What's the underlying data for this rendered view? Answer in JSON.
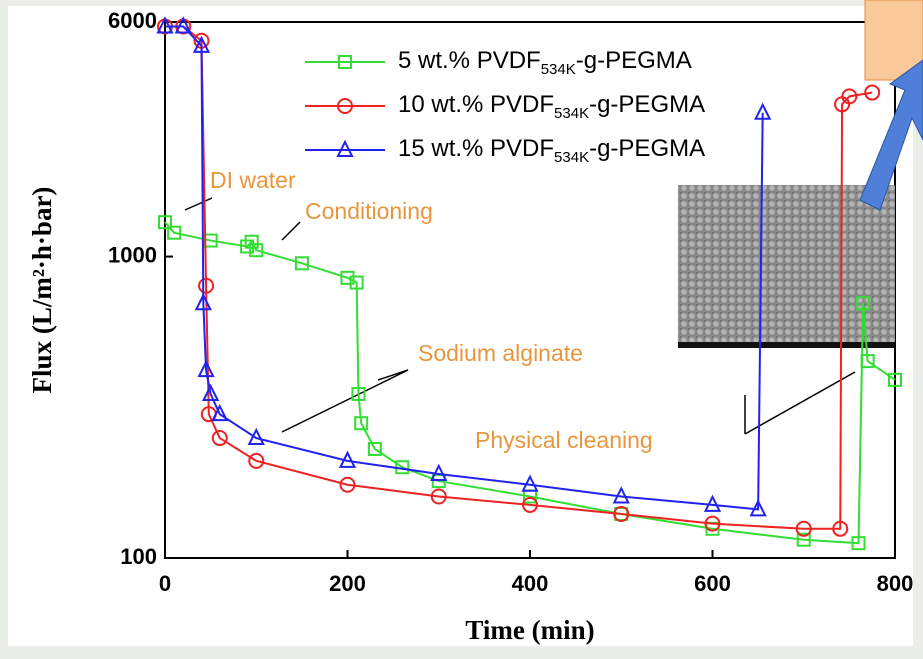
{
  "chart_data": {
    "type": "line",
    "x_label": "Time (min)",
    "y_label": "Flux (L/m²·h·bar)",
    "xlim": [
      0,
      800
    ],
    "xticks": [
      0,
      200,
      400,
      600,
      800
    ],
    "ylim": [
      100,
      6000
    ],
    "yticks": [
      100,
      1000,
      6000
    ],
    "y_log": true,
    "series": [
      {
        "name": "5 wt.%  PVDF534K-g-PEGMA",
        "color": "#33dd33",
        "marker": "square",
        "x": [
          0,
          10,
          50,
          90,
          95,
          100,
          150,
          200,
          210,
          212,
          215,
          230,
          260,
          300,
          400,
          500,
          600,
          700,
          760,
          765,
          770,
          800
        ],
        "values": [
          1300,
          1200,
          1130,
          1080,
          1120,
          1050,
          950,
          850,
          820,
          350,
          280,
          230,
          200,
          180,
          160,
          140,
          125,
          115,
          112,
          700,
          450,
          390
        ]
      },
      {
        "name": "10 wt.%  PVDF534K-g-PEGMA",
        "color": "#ee2222",
        "marker": "circle",
        "x": [
          0,
          20,
          40,
          45,
          48,
          60,
          100,
          200,
          300,
          400,
          500,
          600,
          700,
          740,
          742,
          750,
          775
        ],
        "values": [
          5800,
          5800,
          5200,
          800,
          300,
          250,
          210,
          175,
          160,
          150,
          140,
          130,
          125,
          125,
          3200,
          3400,
          3500
        ]
      },
      {
        "name": "15 wt.%  PVDF534K-g-PEGMA",
        "color": "#2222ee",
        "marker": "triangle",
        "x": [
          0,
          20,
          40,
          42,
          45,
          50,
          60,
          100,
          200,
          300,
          400,
          500,
          600,
          650,
          655
        ],
        "values": [
          5800,
          5800,
          5000,
          700,
          420,
          350,
          300,
          250,
          210,
          190,
          175,
          160,
          150,
          145,
          3000
        ]
      }
    ],
    "annotations": [
      "DI water",
      "Conditioning",
      "Sodium alginate",
      "Physical cleaning"
    ]
  }
}
